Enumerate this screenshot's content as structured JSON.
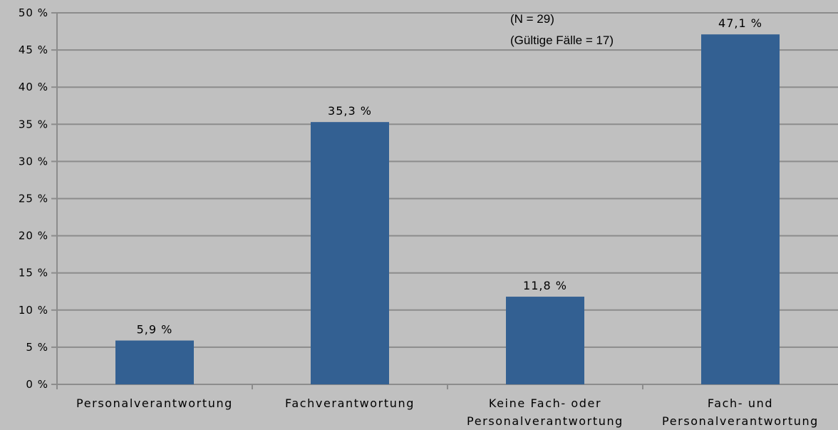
{
  "chart_data": {
    "type": "bar",
    "categories": [
      [
        "Personalverantwortung"
      ],
      [
        "Fachverantwortung"
      ],
      [
        "Keine Fach- oder",
        "Personalverantwortung"
      ],
      [
        "Fach- und",
        "Personalverantwortung"
      ]
    ],
    "values": [
      5.9,
      35.3,
      11.8,
      47.1
    ],
    "data_labels": [
      "5,9 %",
      "35,3 %",
      "11,8 %",
      "47,1 %"
    ],
    "ylim": [
      0,
      50
    ],
    "yticks": [
      0,
      5,
      10,
      15,
      20,
      25,
      30,
      35,
      40,
      45,
      50
    ],
    "ytick_labels": [
      "0 %",
      "5 %",
      "10 %",
      "15 %",
      "20 %",
      "25 %",
      "30 %",
      "35 %",
      "40 %",
      "45 %",
      "50 %"
    ],
    "grid": true,
    "annotations": [
      "(N = 29)",
      "(Gültige Fälle = 17)"
    ],
    "colors": {
      "bar": "#336092",
      "background": "#c0c0c0",
      "grid": "#8c8c8c"
    }
  }
}
